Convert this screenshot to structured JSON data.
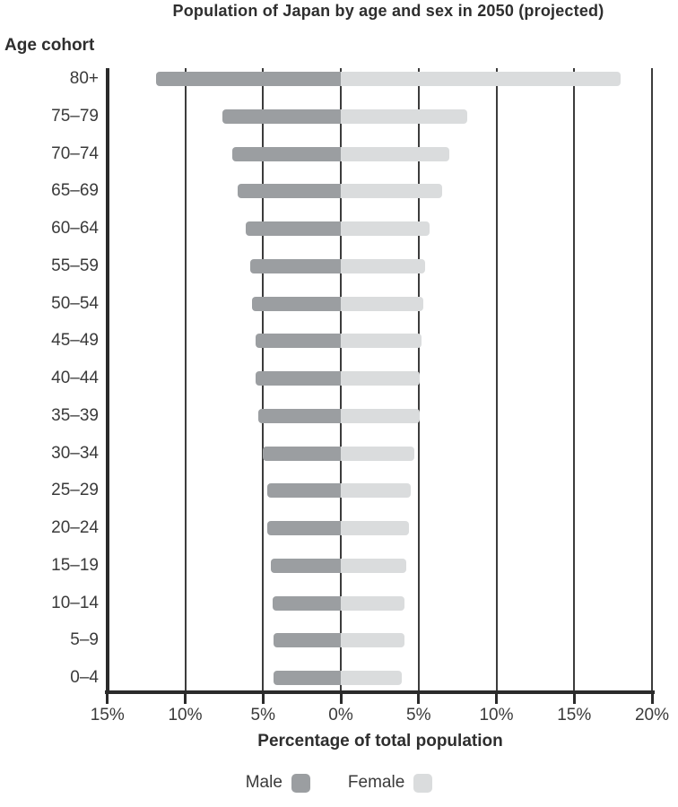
{
  "chart_data": {
    "type": "bar",
    "variant": "population-pyramid",
    "title": "Population of Japan by age and sex in 2050 (projected)",
    "y_axis_title": "Age cohort",
    "x_axis_title": "Percentage of total population",
    "categories": [
      "80+",
      "75–79",
      "70–74",
      "65–69",
      "60–64",
      "55–59",
      "50–54",
      "45–49",
      "40–44",
      "35–39",
      "30–34",
      "25–29",
      "20–24",
      "15–19",
      "10–14",
      "5–9",
      "0–4"
    ],
    "series": [
      {
        "name": "Male",
        "side": "left",
        "color": "#9b9ea1",
        "values": [
          11.9,
          7.6,
          7.0,
          6.6,
          6.1,
          5.8,
          5.7,
          5.5,
          5.5,
          5.3,
          5.0,
          4.7,
          4.7,
          4.5,
          4.4,
          4.3,
          4.3
        ]
      },
      {
        "name": "Female",
        "side": "right",
        "color": "#dadcdd",
        "values": [
          18.0,
          8.1,
          7.0,
          6.5,
          5.7,
          5.4,
          5.3,
          5.2,
          5.1,
          5.1,
          4.7,
          4.5,
          4.4,
          4.2,
          4.1,
          4.1,
          3.9
        ]
      }
    ],
    "x_ticks": [
      {
        "label": "15%",
        "value": -15
      },
      {
        "label": "10%",
        "value": -10
      },
      {
        "label": "5%",
        "value": -5
      },
      {
        "label": "0%",
        "value": 0
      },
      {
        "label": "5%",
        "value": 5
      },
      {
        "label": "10%",
        "value": 10
      },
      {
        "label": "15%",
        "value": 15
      },
      {
        "label": "20%",
        "value": 20
      }
    ],
    "xlim": [
      -15,
      20
    ],
    "grid": true,
    "legend_position": "bottom",
    "colors": {
      "grid_line": "#3c3c3c",
      "axis_line": "#2b2b2b",
      "text": "#3a3a3a"
    }
  }
}
